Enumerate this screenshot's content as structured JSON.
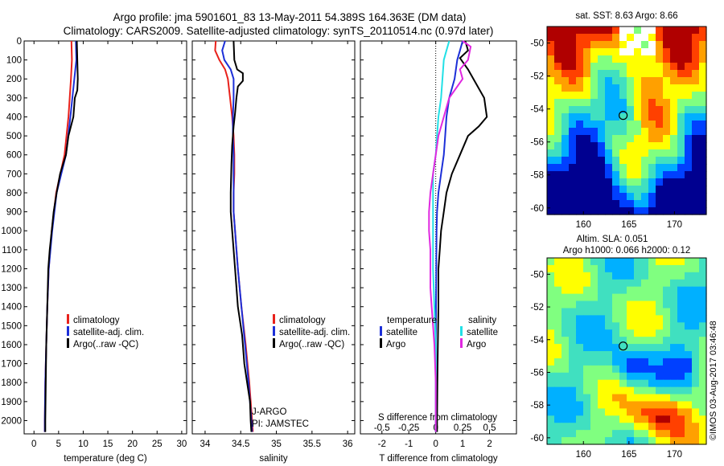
{
  "header": {
    "title_line1": "Argo profile: jma 5901601_83 13-May-2011 54.389S 164.363E (DM data)",
    "title_line2": "Climatology: CARS2009. Satellite-adjusted climatology: synTS_20110514.nc (0.97d later)"
  },
  "colors": {
    "climatology": "#e8211b",
    "satellite": "#1c2fd8",
    "argo": "#000000",
    "satellite_salinity": "#22e0e6",
    "argo_salinity": "#e028e0"
  },
  "depth_ticks": [
    0,
    100,
    200,
    300,
    400,
    500,
    600,
    700,
    800,
    900,
    1000,
    1100,
    1200,
    1300,
    1400,
    1500,
    1600,
    1700,
    1800,
    1900,
    2000
  ],
  "chart_data": [
    {
      "type": "line",
      "id": "temperature",
      "xlabel": "temperature (deg C)",
      "ylabel": "",
      "xlim": [
        -2,
        31
      ],
      "ylim": [
        2070,
        0
      ],
      "xticks": [
        0,
        5,
        10,
        15,
        20,
        25,
        30
      ],
      "legend": {
        "position": "lower-left",
        "items": [
          {
            "key": "climatology",
            "label": "climatology",
            "color": "#e8211b"
          },
          {
            "key": "satellite",
            "label": "satellite-adj. clim.",
            "color": "#1c2fd8"
          },
          {
            "key": "argo",
            "label": "Argo(..raw -QC)",
            "color": "#000000"
          }
        ]
      },
      "series": [
        {
          "name": "climatology",
          "color": "#e8211b",
          "points": [
            [
              7.6,
              0
            ],
            [
              7.7,
              100
            ],
            [
              7.5,
              200
            ],
            [
              7.0,
              400
            ],
            [
              6.2,
              600
            ],
            [
              4.5,
              800
            ],
            [
              3.6,
              1000
            ],
            [
              3.0,
              1200
            ],
            [
              2.7,
              1400
            ],
            [
              2.5,
              1600
            ],
            [
              2.3,
              1800
            ],
            [
              2.2,
              2000
            ],
            [
              2.2,
              2060
            ]
          ]
        },
        {
          "name": "satellite-adj. clim.",
          "color": "#1c2fd8",
          "points": [
            [
              8.5,
              0
            ],
            [
              8.6,
              100
            ],
            [
              8.2,
              200
            ],
            [
              7.4,
              400
            ],
            [
              6.5,
              600
            ],
            [
              4.6,
              800
            ],
            [
              3.7,
              1000
            ],
            [
              3.0,
              1200
            ],
            [
              2.7,
              1400
            ],
            [
              2.5,
              1600
            ],
            [
              2.3,
              1800
            ],
            [
              2.2,
              2000
            ],
            [
              2.2,
              2060
            ]
          ]
        },
        {
          "name": "Argo(..raw -QC)",
          "color": "#000000",
          "points": [
            [
              8.7,
              0
            ],
            [
              8.8,
              100
            ],
            [
              8.9,
              200
            ],
            [
              8.8,
              260
            ],
            [
              8.3,
              300
            ],
            [
              8.0,
              400
            ],
            [
              7.0,
              500
            ],
            [
              6.5,
              600
            ],
            [
              5.3,
              700
            ],
            [
              4.6,
              800
            ],
            [
              4.0,
              900
            ],
            [
              3.6,
              1000
            ],
            [
              3.2,
              1100
            ],
            [
              2.9,
              1200
            ],
            [
              2.7,
              1400
            ],
            [
              2.5,
              1600
            ],
            [
              2.4,
              1800
            ],
            [
              2.3,
              2000
            ],
            [
              2.3,
              2060
            ]
          ]
        }
      ]
    },
    {
      "type": "line",
      "id": "salinity",
      "xlabel": "salinity",
      "ylabel": "",
      "xlim": [
        33.82,
        36.1
      ],
      "ylim": [
        2070,
        0
      ],
      "xticks": [
        34,
        34.5,
        35,
        35.5,
        36
      ],
      "legend": {
        "position": "lower-right",
        "items": [
          {
            "key": "climatology",
            "label": "climatology",
            "color": "#e8211b"
          },
          {
            "key": "satellite",
            "label": "satellite-adj. clim.",
            "color": "#1c2fd8"
          },
          {
            "key": "argo",
            "label": "Argo(..raw -QC)",
            "color": "#000000"
          }
        ]
      },
      "annotations": [
        "J-ARGO",
        "PI: JAMSTEC"
      ],
      "series": [
        {
          "name": "climatology",
          "color": "#e8211b",
          "points": [
            [
              34.15,
              0
            ],
            [
              34.14,
              50
            ],
            [
              34.2,
              100
            ],
            [
              34.28,
              150
            ],
            [
              34.32,
              200
            ],
            [
              34.35,
              300
            ],
            [
              34.38,
              400
            ],
            [
              34.4,
              500
            ],
            [
              34.41,
              600
            ],
            [
              34.41,
              700
            ],
            [
              34.4,
              800
            ],
            [
              34.4,
              900
            ],
            [
              34.42,
              1000
            ],
            [
              34.46,
              1200
            ],
            [
              34.51,
              1400
            ],
            [
              34.57,
              1600
            ],
            [
              34.62,
              1800
            ],
            [
              34.66,
              2000
            ],
            [
              34.67,
              2060
            ]
          ]
        },
        {
          "name": "satellite-adj. clim.",
          "color": "#1c2fd8",
          "points": [
            [
              34.28,
              0
            ],
            [
              34.24,
              50
            ],
            [
              34.27,
              100
            ],
            [
              34.36,
              150
            ],
            [
              34.4,
              200
            ],
            [
              34.4,
              300
            ],
            [
              34.39,
              400
            ],
            [
              34.39,
              500
            ],
            [
              34.4,
              600
            ],
            [
              34.4,
              700
            ],
            [
              34.4,
              800
            ],
            [
              34.4,
              900
            ],
            [
              34.42,
              1000
            ],
            [
              34.46,
              1200
            ],
            [
              34.51,
              1400
            ],
            [
              34.56,
              1600
            ],
            [
              34.61,
              1800
            ],
            [
              34.65,
              2000
            ],
            [
              34.66,
              2060
            ]
          ]
        },
        {
          "name": "Argo(..raw -QC)",
          "color": "#000000",
          "points": [
            [
              34.4,
              0
            ],
            [
              34.41,
              100
            ],
            [
              34.45,
              150
            ],
            [
              34.53,
              170
            ],
            [
              34.53,
              210
            ],
            [
              34.46,
              240
            ],
            [
              34.44,
              300
            ],
            [
              34.42,
              380
            ],
            [
              34.4,
              450
            ],
            [
              34.38,
              550
            ],
            [
              34.37,
              650
            ],
            [
              34.36,
              800
            ],
            [
              34.36,
              900
            ],
            [
              34.38,
              1000
            ],
            [
              34.42,
              1200
            ],
            [
              34.46,
              1400
            ],
            [
              34.52,
              1550
            ],
            [
              34.55,
              1700
            ],
            [
              34.59,
              1800
            ],
            [
              34.63,
              1900
            ],
            [
              34.64,
              2000
            ],
            [
              34.65,
              2060
            ]
          ]
        }
      ]
    },
    {
      "type": "line",
      "id": "differences",
      "xlabel": "T difference from climatology",
      "ylabel": "",
      "xlabel_top": "S difference from climatology",
      "xlim": [
        -2.8,
        3.0
      ],
      "ylim": [
        2070,
        0
      ],
      "xticks": [
        -2,
        -1,
        0,
        1,
        2
      ],
      "xticks_top_values": [
        -2.0,
        -1.0,
        0,
        1.0,
        2.0
      ],
      "xticks_top_labels": [
        "-0.5",
        "-0.25",
        "0",
        "0.25",
        "0.5"
      ],
      "legend": {
        "position": "lower",
        "groups": [
          {
            "title": "temperature",
            "items": [
              {
                "label": "satellite",
                "color": "#1c2fd8"
              },
              {
                "label": "Argo",
                "color": "#000000"
              }
            ]
          },
          {
            "title": "salinity",
            "items": [
              {
                "label": "satellite",
                "color": "#22e0e6"
              },
              {
                "label": "Argo",
                "color": "#e028e0"
              }
            ]
          }
        ]
      },
      "series": [
        {
          "name": "temperature satellite",
          "color": "#1c2fd8",
          "points": [
            [
              1.0,
              0
            ],
            [
              0.9,
              50
            ],
            [
              0.8,
              100
            ],
            [
              0.7,
              200
            ],
            [
              0.5,
              300
            ],
            [
              0.4,
              400
            ],
            [
              0.35,
              500
            ],
            [
              0.3,
              600
            ],
            [
              0.2,
              700
            ],
            [
              0.1,
              800
            ],
            [
              0.05,
              900
            ],
            [
              0.03,
              1000
            ],
            [
              0.02,
              1200
            ],
            [
              0.01,
              1400
            ],
            [
              0.0,
              1600
            ],
            [
              0.0,
              2000
            ],
            [
              0.0,
              2060
            ]
          ]
        },
        {
          "name": "temperature Argo",
          "color": "#000000",
          "points": [
            [
              1.1,
              0
            ],
            [
              1.2,
              50
            ],
            [
              0.9,
              90
            ],
            [
              1.2,
              150
            ],
            [
              1.4,
              200
            ],
            [
              1.8,
              300
            ],
            [
              1.9,
              400
            ],
            [
              1.6,
              450
            ],
            [
              1.2,
              500
            ],
            [
              0.9,
              600
            ],
            [
              0.6,
              700
            ],
            [
              0.4,
              800
            ],
            [
              0.3,
              900
            ],
            [
              0.2,
              1000
            ],
            [
              0.15,
              1100
            ],
            [
              0.1,
              1200
            ],
            [
              0.1,
              1400
            ],
            [
              0.08,
              1600
            ],
            [
              0.06,
              1800
            ],
            [
              0.05,
              2000
            ],
            [
              0.05,
              2060
            ]
          ]
        },
        {
          "name": "salinity satellite",
          "color": "#22e0e6",
          "points": [
            [
              0.5,
              0
            ],
            [
              0.4,
              50
            ],
            [
              0.3,
              100
            ],
            [
              0.25,
              200
            ],
            [
              0.2,
              300
            ],
            [
              0.1,
              400
            ],
            [
              0.05,
              500
            ],
            [
              0.0,
              600
            ],
            [
              -0.1,
              700
            ],
            [
              -0.1,
              800
            ],
            [
              -0.1,
              1000
            ],
            [
              -0.1,
              1200
            ],
            [
              -0.05,
              1400
            ],
            [
              0.0,
              1600
            ],
            [
              0.0,
              2000
            ],
            [
              0.0,
              2060
            ]
          ]
        },
        {
          "name": "salinity Argo",
          "color": "#e028e0",
          "points": [
            [
              1.0,
              0
            ],
            [
              1.3,
              30
            ],
            [
              1.2,
              100
            ],
            [
              0.9,
              150
            ],
            [
              1.0,
              200
            ],
            [
              0.5,
              300
            ],
            [
              0.3,
              400
            ],
            [
              0.1,
              500
            ],
            [
              0.0,
              600
            ],
            [
              -0.1,
              700
            ],
            [
              -0.2,
              800
            ],
            [
              -0.25,
              900
            ],
            [
              -0.25,
              1000
            ],
            [
              -0.2,
              1100
            ],
            [
              -0.2,
              1200
            ],
            [
              -0.2,
              1300
            ],
            [
              -0.15,
              1400
            ],
            [
              -0.1,
              1500
            ],
            [
              -0.05,
              1600
            ],
            [
              0.0,
              1800
            ],
            [
              0.0,
              2000
            ],
            [
              0.0,
              2060
            ]
          ]
        }
      ]
    },
    {
      "type": "heatmap",
      "id": "sst_map",
      "title": "sat. SST: 8.63  Argo: 8.66",
      "xlim": [
        156,
        173.5
      ],
      "ylim": [
        -60.4,
        -49
      ],
      "xticks": [
        160,
        165,
        170
      ],
      "yticks": [
        -50,
        -52,
        -54,
        -56,
        -58,
        -60
      ],
      "marker": {
        "x": 164.363,
        "y": -54.389
      },
      "colormap": [
        "#000090",
        "#0040ff",
        "#00b0ff",
        "#40e0c0",
        "#80ff80",
        "#ffff00",
        "#ffa000",
        "#ff4000",
        "#b00000"
      ]
    },
    {
      "type": "heatmap",
      "id": "sla_map",
      "title": "Altim. SLA: 0.051",
      "subtitle": "Argo h1000: 0.066  h2000: 0.12",
      "xlim": [
        156,
        173.5
      ],
      "ylim": [
        -60.4,
        -49
      ],
      "xticks": [
        160,
        165,
        170
      ],
      "yticks": [
        -50,
        -52,
        -54,
        -56,
        -58,
        -60
      ],
      "marker": {
        "x": 164.363,
        "y": -54.389
      },
      "colormap": [
        "#000090",
        "#0040ff",
        "#00b0ff",
        "#40e0c0",
        "#80ff80",
        "#ffff00",
        "#ffa000",
        "#ff4000",
        "#b00000"
      ]
    }
  ],
  "stamp": "©IMOS 03-Aug-2017 03:46:48"
}
